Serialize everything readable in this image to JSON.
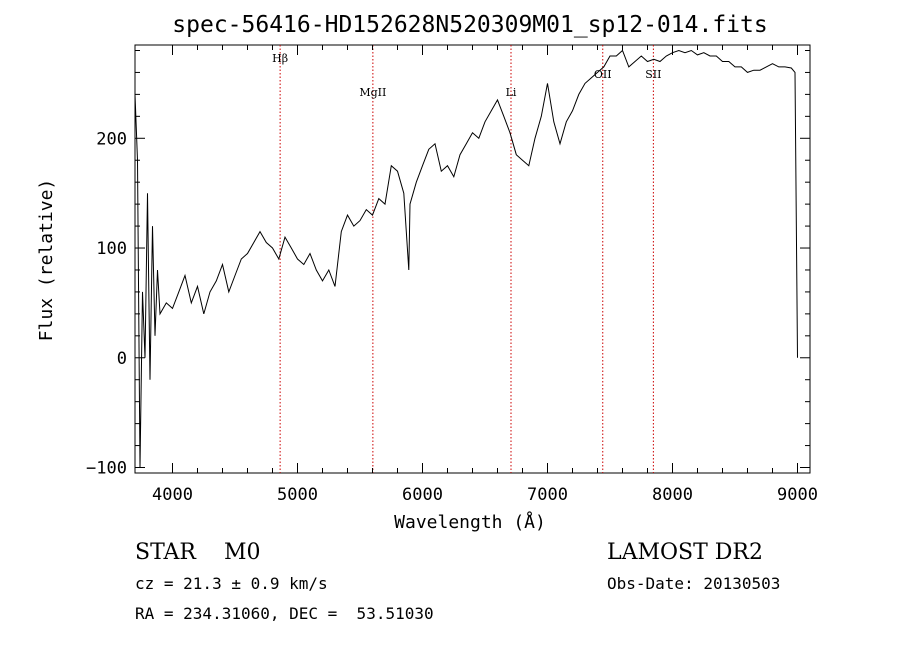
{
  "chart_data": {
    "type": "line",
    "title": "spec-56416-HD152628N520309M01_sp12-014.fits",
    "xlabel": "Wavelength (Å)",
    "ylabel": "Flux (relative)",
    "xlim": [
      3700,
      9100
    ],
    "ylim": [
      -105,
      285
    ],
    "xticks": [
      4000,
      5000,
      6000,
      7000,
      8000,
      9000
    ],
    "yticks": [
      -100,
      0,
      100,
      200
    ],
    "grid": false,
    "line_color": "#000000",
    "marker_color": "#cc0000",
    "lines": [
      {
        "label": "Hβ",
        "x": 4861
      },
      {
        "label": "MgII",
        "x": 5603
      },
      {
        "label": "Li",
        "x": 6708
      },
      {
        "label": "OII",
        "x": 7442
      },
      {
        "label": "SII",
        "x": 7847
      }
    ],
    "series": [
      {
        "x": [
          3700,
          3720,
          3740,
          3760,
          3780,
          3800,
          3820,
          3840,
          3860,
          3880,
          3900,
          3950,
          4000,
          4050,
          4100,
          4150,
          4200,
          4250,
          4300,
          4350,
          4400,
          4450,
          4500,
          4550,
          4600,
          4650,
          4700,
          4750,
          4800,
          4850,
          4900,
          4950,
          5000,
          5050,
          5100,
          5150,
          5200,
          5250,
          5300,
          5350,
          5400,
          5450,
          5500,
          5550,
          5600,
          5650,
          5700,
          5750,
          5800,
          5850,
          5890,
          5900,
          5950,
          6000,
          6050,
          6100,
          6150,
          6200,
          6250,
          6300,
          6350,
          6400,
          6450,
          6500,
          6550,
          6600,
          6650,
          6700,
          6750,
          6800,
          6850,
          6900,
          6950,
          7000,
          7050,
          7100,
          7150,
          7200,
          7250,
          7300,
          7350,
          7400,
          7450,
          7500,
          7550,
          7600,
          7650,
          7700,
          7750,
          7800,
          7850,
          7900,
          7950,
          8000,
          8050,
          8100,
          8150,
          8200,
          8250,
          8300,
          8350,
          8400,
          8450,
          8500,
          8550,
          8600,
          8650,
          8700,
          8750,
          8800,
          8850,
          8900,
          8950,
          8980,
          9000
        ],
        "y": [
          240,
          180,
          -100,
          60,
          0,
          150,
          -20,
          120,
          20,
          80,
          40,
          50,
          45,
          60,
          75,
          50,
          65,
          40,
          60,
          70,
          85,
          60,
          75,
          90,
          95,
          105,
          115,
          105,
          100,
          90,
          110,
          100,
          90,
          85,
          95,
          80,
          70,
          80,
          65,
          115,
          130,
          120,
          125,
          135,
          130,
          145,
          140,
          175,
          170,
          150,
          80,
          140,
          160,
          175,
          190,
          195,
          170,
          175,
          165,
          185,
          195,
          205,
          200,
          215,
          225,
          235,
          220,
          205,
          185,
          180,
          175,
          200,
          220,
          250,
          215,
          195,
          215,
          225,
          240,
          250,
          255,
          260,
          265,
          275,
          275,
          280,
          265,
          270,
          275,
          270,
          272,
          270,
          275,
          278,
          280,
          278,
          280,
          276,
          278,
          275,
          275,
          270,
          270,
          265,
          265,
          260,
          262,
          262,
          265,
          268,
          265,
          265,
          264,
          260,
          0
        ]
      }
    ]
  },
  "info": {
    "class_label": "STAR",
    "subclass": "M0",
    "survey": "LAMOST DR2",
    "cz": "cz = 21.3 ± 0.9 km/s",
    "obs_date": "Obs-Date: 20130503",
    "coords": "RA = 234.31060, DEC =  53.51030"
  }
}
